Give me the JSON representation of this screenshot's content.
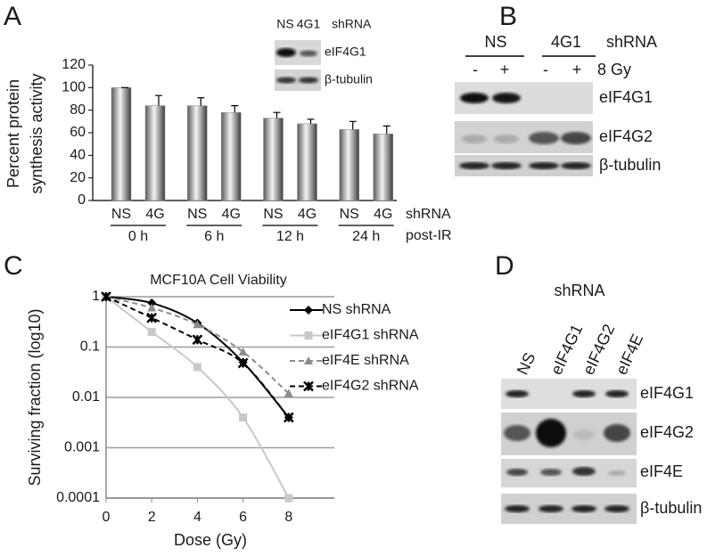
{
  "panels": [
    "A",
    "B",
    "C",
    "D"
  ],
  "chart_data": [
    {
      "type": "bar",
      "ylabel": [
        "Percent protein",
        "synthesis activity"
      ],
      "categories": [
        "NS",
        "4G",
        "NS",
        "4G",
        "NS",
        "4G",
        "NS",
        "4G"
      ],
      "groups": [
        "0 h",
        "6 h",
        "12 h",
        "24 h"
      ],
      "category_title": "shRNA",
      "group_title": "post-IR",
      "values": [
        100,
        84,
        84,
        78,
        73,
        68,
        63,
        59
      ],
      "errors": [
        0,
        9,
        7,
        6,
        5,
        4,
        7,
        7
      ],
      "ylim": [
        0,
        120
      ],
      "yticks": [
        0,
        20,
        40,
        60,
        80,
        100,
        120
      ],
      "color": "#8c8c8c"
    },
    {
      "type": "line",
      "title": "MCF10A Cell Viability",
      "xlabel": "Dose (Gy)",
      "ylabel": "Surviving fraction (log10)",
      "x": [
        0,
        2,
        4,
        6,
        8
      ],
      "xlim": [
        0,
        10
      ],
      "xticks": [
        0,
        2,
        4,
        6,
        8
      ],
      "ylim": [
        0.0001,
        1
      ],
      "yticks": [
        1,
        0.1,
        0.01,
        0.001,
        0.0001
      ],
      "log_y": true,
      "grid": true,
      "legend": "upper right",
      "series": [
        {
          "name": "NS shRNA",
          "color": "#000000",
          "dash": false,
          "marker": "diamond",
          "values": [
            1,
            0.75,
            0.3,
            0.05,
            0.004
          ]
        },
        {
          "name": "eIF4G1 shRNA",
          "color": "#c8c8c8",
          "dash": false,
          "marker": "square",
          "values": [
            1,
            0.2,
            0.04,
            0.004,
            0.0001
          ]
        },
        {
          "name": "eIF4E shRNA",
          "color": "#8c8c8c",
          "dash": true,
          "marker": "triangle",
          "values": [
            1,
            0.6,
            0.28,
            0.08,
            0.012
          ]
        },
        {
          "name": "eIF4G2 shRNA",
          "color": "#000000",
          "dash": true,
          "marker": "star",
          "values": [
            1,
            0.38,
            0.14,
            0.048,
            0.004
          ]
        }
      ]
    }
  ],
  "inset_a": {
    "lanes": [
      "NS",
      "4G1"
    ],
    "lane_title": "shRNA",
    "rows": [
      "eIF4G1",
      "β-tubulin"
    ]
  },
  "blot_b": {
    "groups": [
      "NS",
      "4G1"
    ],
    "group_title": "shRNA",
    "treatment": [
      "-",
      "+",
      "-",
      "+"
    ],
    "treatment_title": "8 Gy",
    "rows": [
      "eIF4G1",
      "eIF4G2",
      "β-tubulin"
    ]
  },
  "blot_d": {
    "title": "shRNA",
    "lanes": [
      "NS",
      "eIF4G1",
      "eIF4G2",
      "eIF4E"
    ],
    "rows": [
      "eIF4G1",
      "eIF4G2",
      "eIF4E",
      "β-tubulin"
    ]
  }
}
